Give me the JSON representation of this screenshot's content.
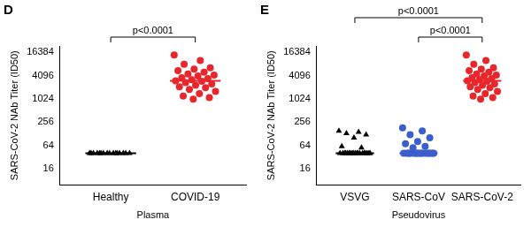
{
  "chart_data": [
    {
      "type": "scatter",
      "panel": "D",
      "y_label": "SARS-CoV-2 NAb Titer (ID50)",
      "x_label": "Plasma",
      "log": "y",
      "grid": false,
      "ylim": [
        6,
        24000
      ],
      "yticks": [
        16,
        64,
        256,
        1024,
        4096,
        16384
      ],
      "groups": [
        {
          "category": "Healthy",
          "color": "#000000",
          "marker": "triangle",
          "median": 40,
          "values": [
            40,
            40,
            40,
            40,
            40,
            40,
            40,
            40,
            40,
            40,
            40,
            40,
            40,
            40,
            40,
            40
          ]
        },
        {
          "category": "COVID-19",
          "color": "#e8262b",
          "marker": "circle",
          "median": 3000,
          "values": [
            14000,
            10000,
            8000,
            6500,
            6000,
            5500,
            5000,
            4500,
            4200,
            4000,
            3600,
            3400,
            3200,
            3000,
            2900,
            2700,
            2500,
            2300,
            2100,
            2000,
            1800,
            1600,
            1400,
            1200,
            1100,
            1000
          ]
        }
      ],
      "annotations": [
        {
          "text": "p<0.0001",
          "from": "Healthy",
          "to": "COVID-19"
        }
      ]
    },
    {
      "type": "scatter",
      "panel": "E",
      "y_label": "SARS-CoV-2 NAb Titer (ID50)",
      "x_label": "Pseudovirus",
      "log": "y",
      "grid": false,
      "ylim": [
        6,
        24000
      ],
      "yticks": [
        16,
        64,
        256,
        1024,
        4096,
        16384
      ],
      "groups": [
        {
          "category": "VSVG",
          "color": "#000000",
          "marker": "triangle",
          "median": 40,
          "values": [
            150,
            140,
            130,
            120,
            100,
            60,
            55,
            40,
            40,
            40,
            40,
            40,
            40,
            40,
            40,
            40,
            40,
            40,
            40,
            40,
            40,
            40,
            40,
            40,
            40,
            40
          ]
        },
        {
          "category": "SARS-CoV",
          "color": "#3a5fcd",
          "marker": "circle",
          "median": 40,
          "values": [
            180,
            150,
            120,
            100,
            80,
            70,
            60,
            55,
            40,
            40,
            40,
            40,
            40,
            40,
            40,
            40,
            40,
            40,
            40,
            40,
            40,
            40,
            40,
            40,
            40,
            40
          ]
        },
        {
          "category": "SARS-CoV-2",
          "color": "#e8262b",
          "marker": "circle",
          "median": 3000,
          "values": [
            14000,
            10000,
            8000,
            6500,
            6000,
            5500,
            5000,
            4500,
            4200,
            4000,
            3600,
            3400,
            3200,
            3000,
            2900,
            2700,
            2500,
            2300,
            2100,
            2000,
            1800,
            1600,
            1400,
            1200,
            1100,
            1000
          ]
        }
      ],
      "annotations": [
        {
          "text": "p<0.0001",
          "from": "VSVG",
          "to": "SARS-CoV-2"
        },
        {
          "text": "p<0.0001",
          "from": "SARS-CoV",
          "to": "SARS-CoV-2"
        }
      ]
    }
  ]
}
